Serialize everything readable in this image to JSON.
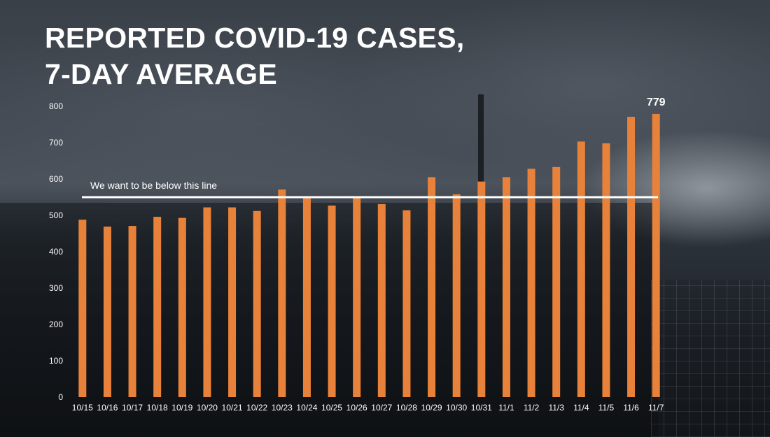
{
  "title_lines": [
    "REPORTED COVID-19 CASES,",
    "7-DAY AVERAGE"
  ],
  "colors": {
    "bar": "#e8823a",
    "reference_line": "#ffffff",
    "text": "#ffffff"
  },
  "chart_data": {
    "type": "bar",
    "title": "REPORTED COVID-19 CASES, 7-DAY AVERAGE",
    "xlabel": "",
    "ylabel": "",
    "ylim": [
      0,
      800
    ],
    "yticks": [
      0,
      100,
      200,
      300,
      400,
      500,
      600,
      700,
      800
    ],
    "grid": false,
    "legend": "none",
    "categories": [
      "10/15",
      "10/16",
      "10/17",
      "10/18",
      "10/19",
      "10/20",
      "10/21",
      "10/22",
      "10/23",
      "10/24",
      "10/25",
      "10/26",
      "10/27",
      "10/28",
      "10/29",
      "10/30",
      "10/31",
      "11/1",
      "11/2",
      "11/3",
      "11/4",
      "11/5",
      "11/6",
      "11/7"
    ],
    "values": [
      488,
      469,
      471,
      496,
      493,
      522,
      522,
      512,
      571,
      552,
      527,
      550,
      531,
      514,
      605,
      558,
      593,
      605,
      628,
      633,
      703,
      698,
      771,
      779
    ],
    "reference_line": {
      "value": 550,
      "label": "We want to be below this line"
    },
    "data_labels": [
      {
        "category": "11/7",
        "text": "779"
      }
    ]
  }
}
